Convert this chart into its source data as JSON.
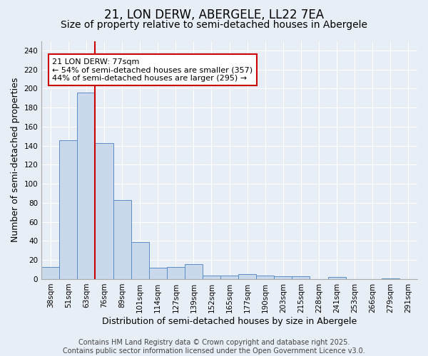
{
  "title": "21, LON DERW, ABERGELE, LL22 7EA",
  "subtitle": "Size of property relative to semi-detached houses in Abergele",
  "xlabel": "Distribution of semi-detached houses by size in Abergele",
  "ylabel": "Number of semi-detached properties",
  "bar_labels": [
    "38sqm",
    "51sqm",
    "63sqm",
    "76sqm",
    "89sqm",
    "101sqm",
    "114sqm",
    "127sqm",
    "139sqm",
    "152sqm",
    "165sqm",
    "177sqm",
    "190sqm",
    "203sqm",
    "215sqm",
    "228sqm",
    "241sqm",
    "253sqm",
    "266sqm",
    "279sqm",
    "291sqm"
  ],
  "bar_values": [
    13,
    146,
    196,
    143,
    83,
    39,
    12,
    13,
    16,
    4,
    4,
    5,
    4,
    3,
    3,
    0,
    2,
    0,
    0,
    1,
    0
  ],
  "bar_color": "#c9d8ea",
  "bar_edge_color": "#5b8dc8",
  "bg_color": "#e8eef5",
  "grid_color": "#ffffff",
  "red_line_x": 2.5,
  "annotation_title": "21 LON DERW: 77sqm",
  "annotation_line1": "← 54% of semi-detached houses are smaller (357)",
  "annotation_line2": "44% of semi-detached houses are larger (295) →",
  "annotation_box_color": "#ffffff",
  "annotation_edge_color": "#cc0000",
  "ylim": [
    0,
    250
  ],
  "yticks": [
    0,
    20,
    40,
    60,
    80,
    100,
    120,
    140,
    160,
    180,
    200,
    220,
    240
  ],
  "footer": "Contains HM Land Registry data © Crown copyright and database right 2025.\nContains public sector information licensed under the Open Government Licence v3.0.",
  "title_fontsize": 12,
  "subtitle_fontsize": 10,
  "axis_label_fontsize": 9,
  "tick_fontsize": 7.5,
  "annotation_fontsize": 8,
  "footer_fontsize": 7
}
